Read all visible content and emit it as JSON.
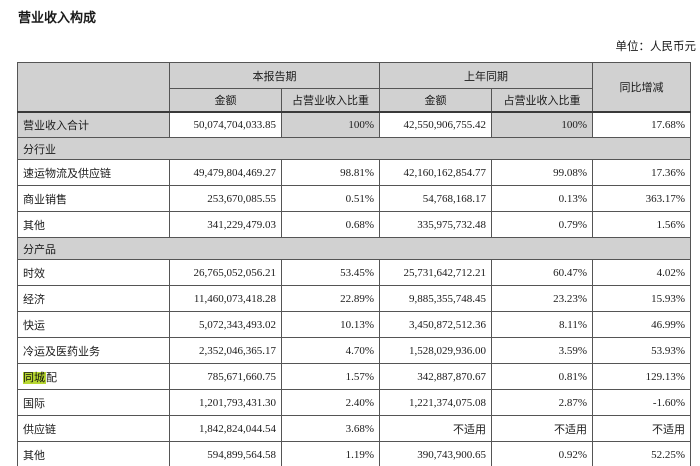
{
  "page": {
    "title": "营业收入构成",
    "unit_label": "单位：人民币元"
  },
  "colors": {
    "header_bg": "#d1d1d1",
    "section_bg": "#d1d1d1",
    "search_highlight": "#b8d832",
    "border": "#555555",
    "text": "#1a1a1a"
  },
  "table": {
    "header": {
      "current_period": "本报告期",
      "prior_period": "上年同期",
      "yoy_change": "同比增减",
      "amount": "金额",
      "pct_of_revenue": "占营业收入比重"
    },
    "rows": [
      {
        "type": "data",
        "is_total": true,
        "label": "营业收入合计",
        "cells": [
          "50,074,704,033.85",
          "100%",
          "42,550,906,755.42",
          "100%",
          "17.68%"
        ]
      },
      {
        "type": "section",
        "label": "分行业"
      },
      {
        "type": "data",
        "label": "速运物流及供应链",
        "cells": [
          "49,479,804,469.27",
          "98.81%",
          "42,160,162,854.77",
          "99.08%",
          "17.36%"
        ]
      },
      {
        "type": "data",
        "label": "商业销售",
        "cells": [
          "253,670,085.55",
          "0.51%",
          "54,768,168.17",
          "0.13%",
          "363.17%"
        ]
      },
      {
        "type": "data",
        "label": "其他",
        "cells": [
          "341,229,479.03",
          "0.68%",
          "335,975,732.48",
          "0.79%",
          "1.56%"
        ]
      },
      {
        "type": "section",
        "label": "分产品"
      },
      {
        "type": "data",
        "label": "时效",
        "cells": [
          "26,765,052,056.21",
          "53.45%",
          "25,731,642,712.21",
          "60.47%",
          "4.02%"
        ]
      },
      {
        "type": "data",
        "label": "经济",
        "cells": [
          "11,460,073,418.28",
          "22.89%",
          "9,885,355,748.45",
          "23.23%",
          "15.93%"
        ]
      },
      {
        "type": "data",
        "label": "快运",
        "cells": [
          "5,072,343,493.02",
          "10.13%",
          "3,450,872,512.36",
          "8.11%",
          "46.99%"
        ]
      },
      {
        "type": "data",
        "label": "冷运及医药业务",
        "cells": [
          "2,352,046,365.17",
          "4.70%",
          "1,528,029,936.00",
          "3.59%",
          "53.93%"
        ]
      },
      {
        "type": "data",
        "label": "同城配",
        "highlight": "同城",
        "label_rest": "配",
        "cells": [
          "785,671,660.75",
          "1.57%",
          "342,887,870.67",
          "0.81%",
          "129.13%"
        ]
      },
      {
        "type": "data",
        "label": "国际",
        "cells": [
          "1,201,793,431.30",
          "2.40%",
          "1,221,374,075.08",
          "2.87%",
          "-1.60%"
        ]
      },
      {
        "type": "data",
        "label": "供应链",
        "cells": [
          "1,842,824,044.54",
          "3.68%",
          "不适用",
          "不适用",
          "不适用"
        ]
      },
      {
        "type": "data",
        "label": "其他",
        "cells": [
          "594,899,564.58",
          "1.19%",
          "390,743,900.65",
          "0.92%",
          "52.25%"
        ]
      },
      {
        "type": "partial"
      }
    ]
  }
}
